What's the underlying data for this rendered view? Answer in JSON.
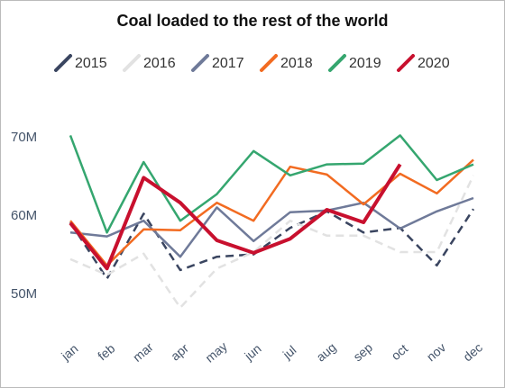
{
  "chart_data": {
    "type": "line",
    "title": "Coal loaded to the rest of the world",
    "categories": [
      "jan",
      "feb",
      "mar",
      "apr",
      "may",
      "jun",
      "jul",
      "aug",
      "sep",
      "oct",
      "nov",
      "dec"
    ],
    "ylim": [
      45,
      80
    ],
    "yticks": [
      {
        "value": 50,
        "label": "50M"
      },
      {
        "value": 60,
        "label": "60M"
      },
      {
        "value": 70,
        "label": "70M"
      }
    ],
    "series": [
      {
        "name": "2015",
        "color": "#3a4560",
        "dash": true,
        "width": 2.5,
        "values": [
          59.2,
          52,
          60.3,
          53.1,
          54.8,
          55.1,
          58.5,
          60.6,
          57.9,
          58.5,
          53.7,
          60.9
        ]
      },
      {
        "name": "2016",
        "color": "#e2e2e2",
        "dash": true,
        "width": 2.5,
        "values": [
          54.5,
          52.5,
          55.2,
          48.3,
          53.3,
          55.4,
          59.4,
          57.5,
          57.5,
          55.4,
          55.4,
          65.2
        ]
      },
      {
        "name": "2017",
        "color": "#6f7a99",
        "dash": false,
        "width": 2.5,
        "values": [
          57.9,
          57.4,
          59.4,
          54.8,
          61.1,
          56.8,
          60.5,
          60.7,
          61.7,
          58.4,
          60.6,
          62.3
        ]
      },
      {
        "name": "2018",
        "color": "#f26b21",
        "dash": false,
        "width": 2.5,
        "values": [
          59.4,
          53.7,
          58.3,
          58.2,
          61.7,
          59.4,
          66.3,
          65.3,
          61.5,
          65.4,
          62.9,
          67.2
        ]
      },
      {
        "name": "2019",
        "color": "#35a66f",
        "dash": false,
        "width": 2.5,
        "values": [
          70.3,
          57.9,
          66.9,
          59.4,
          62.8,
          68.3,
          65.2,
          66.6,
          66.7,
          70.3,
          64.6,
          66.6
        ]
      },
      {
        "name": "2020",
        "color": "#c8102e",
        "dash": false,
        "width": 4,
        "values": [
          59.1,
          53.3,
          64.9,
          61.7,
          56.9,
          55.3,
          57.1,
          60.8,
          59.2,
          66.6,
          null,
          null
        ]
      }
    ]
  }
}
